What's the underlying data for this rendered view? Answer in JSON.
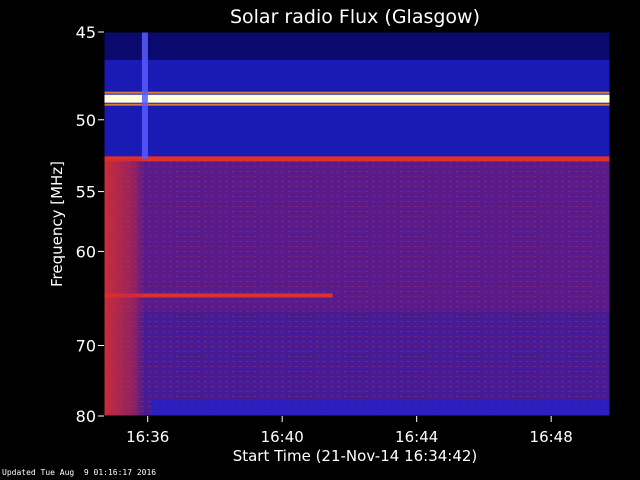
{
  "chart_data": {
    "type": "heatmap",
    "title": "Solar radio Flux (Glasgow)",
    "xlabel": "Start Time (21-Nov-14 16:34:42)",
    "ylabel": "Frequency [MHz]",
    "x_ticks": [
      "16:36",
      "16:40",
      "16:44",
      "16:48"
    ],
    "x_range": [
      "16:34:42",
      "16:49:45"
    ],
    "y_ticks": [
      45,
      50,
      55,
      60,
      70,
      80
    ],
    "ylim": [
      45,
      80
    ],
    "y_scale": "reciprocal",
    "y_inverted": true,
    "colors": {
      "background": "#000000",
      "low": "#0a0a6e",
      "mid": "#5a1a8a",
      "high": "#e0302a",
      "peak": "#ffffe0"
    },
    "features": [
      {
        "kind": "horizontal_band",
        "frequency_mhz": 48.7,
        "level": "peak"
      },
      {
        "kind": "horizontal_band",
        "frequency_mhz": 52.6,
        "level": "high"
      },
      {
        "kind": "horizontal_band",
        "frequency_mhz": 64.3,
        "level": "high",
        "time_end": "16:41:30"
      },
      {
        "kind": "vertical_burst",
        "time": "16:35:55",
        "level": "high"
      }
    ]
  },
  "footer": {
    "updated": "Updated Tue Aug  9 01:16:17 2016"
  }
}
